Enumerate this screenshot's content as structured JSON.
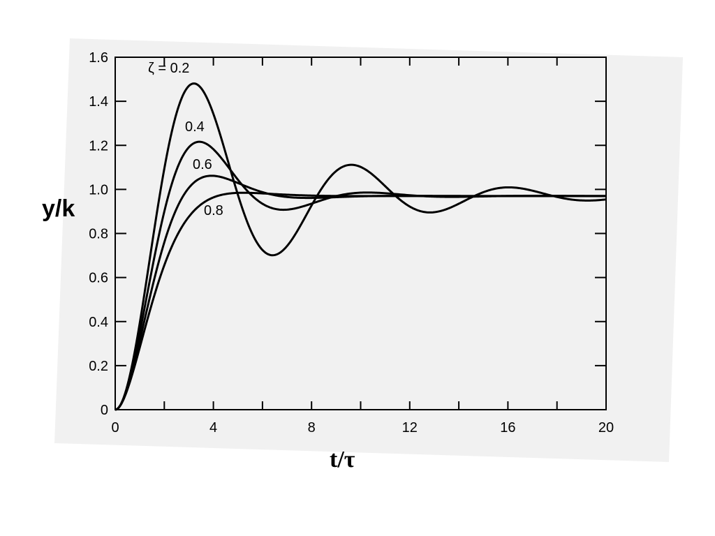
{
  "chart_data": {
    "type": "line",
    "xlabel": "t/τ",
    "ylabel": "y/k",
    "xlim": [
      0,
      20
    ],
    "ylim": [
      0,
      1.6
    ],
    "x_ticks": [
      "0",
      "4",
      "8",
      "12",
      "16",
      "20"
    ],
    "y_ticks": [
      "0",
      "0.2",
      "0.4",
      "0.6",
      "0.8",
      "1.0",
      "1.2",
      "1.4",
      "1.6"
    ],
    "grid": false,
    "series": [
      {
        "name": "ζ = 0.2",
        "zeta": 0.2,
        "points": [
          [
            0,
            0
          ],
          [
            1,
            0.35
          ],
          [
            2,
            1.0
          ],
          [
            3.2,
            1.49
          ],
          [
            4.5,
            1.2
          ],
          [
            6.5,
            0.7
          ],
          [
            9.5,
            1.12
          ],
          [
            13,
            0.9
          ],
          [
            16,
            1.02
          ],
          [
            20,
            0.97
          ]
        ]
      },
      {
        "name": "0.4",
        "zeta": 0.4,
        "points": [
          [
            0,
            0
          ],
          [
            1,
            0.3
          ],
          [
            2,
            0.8
          ],
          [
            3.5,
            1.22
          ],
          [
            5,
            1.05
          ],
          [
            7,
            0.91
          ],
          [
            10,
            0.99
          ],
          [
            20,
            0.97
          ]
        ]
      },
      {
        "name": "0.6",
        "zeta": 0.6,
        "points": [
          [
            0,
            0
          ],
          [
            1,
            0.25
          ],
          [
            2,
            0.65
          ],
          [
            4,
            1.06
          ],
          [
            6,
            1.0
          ],
          [
            9,
            0.97
          ],
          [
            20,
            0.97
          ]
        ]
      },
      {
        "name": "0.8",
        "zeta": 0.8,
        "points": [
          [
            0,
            0
          ],
          [
            1,
            0.2
          ],
          [
            2,
            0.55
          ],
          [
            4,
            0.92
          ],
          [
            6,
            0.99
          ],
          [
            10,
            0.98
          ],
          [
            20,
            0.97
          ]
        ]
      }
    ]
  }
}
